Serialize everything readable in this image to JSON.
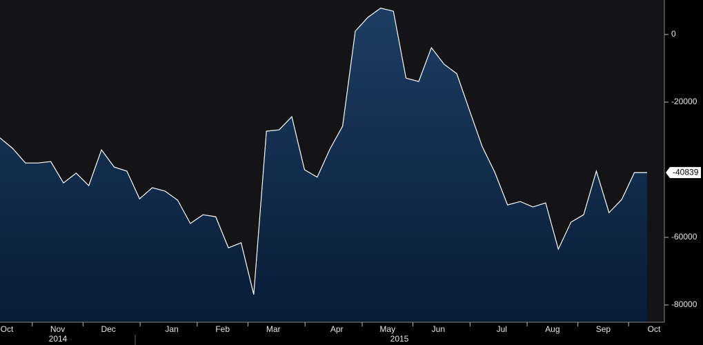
{
  "chart_data": {
    "type": "area",
    "categories": [
      "Oct",
      null,
      null,
      null,
      "Nov",
      null,
      null,
      null,
      "Dec",
      null,
      null,
      null,
      null,
      "Jan",
      null,
      null,
      null,
      "Feb",
      null,
      null,
      null,
      "Mar",
      null,
      null,
      null,
      null,
      "Apr",
      null,
      null,
      null,
      "May",
      null,
      null,
      null,
      "Jun",
      null,
      null,
      null,
      null,
      "Jul",
      null,
      null,
      null,
      "Aug",
      null,
      null,
      null,
      "Sep",
      null,
      null,
      null,
      "Oct"
    ],
    "values": [
      -30600,
      -33700,
      -38000,
      -38000,
      -37600,
      -43900,
      -41000,
      -44700,
      -34100,
      -39200,
      -40400,
      -48600,
      -45300,
      -46300,
      -49000,
      -55900,
      -53300,
      -53900,
      -63100,
      -61600,
      -76900,
      -28600,
      -28200,
      -24300,
      -40000,
      -42200,
      -33900,
      -27100,
      1000,
      5100,
      7800,
      6900,
      -12900,
      -13900,
      -3900,
      -8800,
      -11600,
      -22400,
      -33100,
      -40800,
      -50400,
      -49400,
      -51000,
      -49800,
      -63500,
      -55500,
      -53300,
      -40400,
      -52700,
      -48800,
      -40839,
      -40839
    ],
    "color": "#ffffff",
    "year_labels": [
      "2014",
      "2015"
    ],
    "ylim": [
      -85100,
      10200
    ],
    "yticks": [
      -80000,
      -60000,
      -20000,
      0
    ]
  }
}
